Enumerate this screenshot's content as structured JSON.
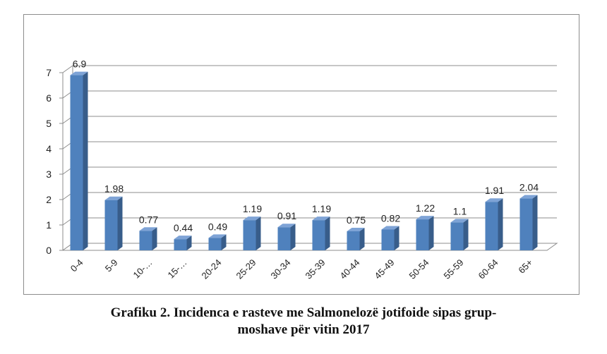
{
  "chart_data": {
    "type": "bar",
    "categories": [
      "0-4",
      "5-9",
      "10-…",
      "15-…",
      "20-24",
      "25-29",
      "30-34",
      "35-39",
      "40-44",
      "45-49",
      "50-54",
      "55-59",
      "60-64",
      "65+"
    ],
    "values": [
      6.9,
      1.98,
      0.77,
      0.44,
      0.49,
      1.19,
      0.91,
      1.19,
      0.75,
      0.82,
      1.22,
      1.1,
      1.91,
      2.04
    ],
    "value_labels": [
      "6.9",
      "1.98",
      "0.77",
      "0.44",
      "0.49",
      "1.19",
      "0.91",
      "1.19",
      "0.75",
      "0.82",
      "1.22",
      "1.1",
      "1.91",
      "2.04"
    ],
    "y_ticks": [
      "0",
      "1",
      "2",
      "3",
      "4",
      "5",
      "6",
      "7"
    ],
    "ylim": [
      0,
      7
    ],
    "grid": true,
    "bar_style": "3d",
    "colors": {
      "bar_front": "#4f81bd",
      "bar_side": "#385d8a",
      "bar_top": "#7ea3d6",
      "grid": "#8c8c8c",
      "text": "#222222"
    }
  },
  "caption": {
    "line1": "Grafiku 2. Incidenca e rasteve me Salmonelozë jotifoide sipas grup-",
    "line2": "moshave për vitin 2017"
  }
}
